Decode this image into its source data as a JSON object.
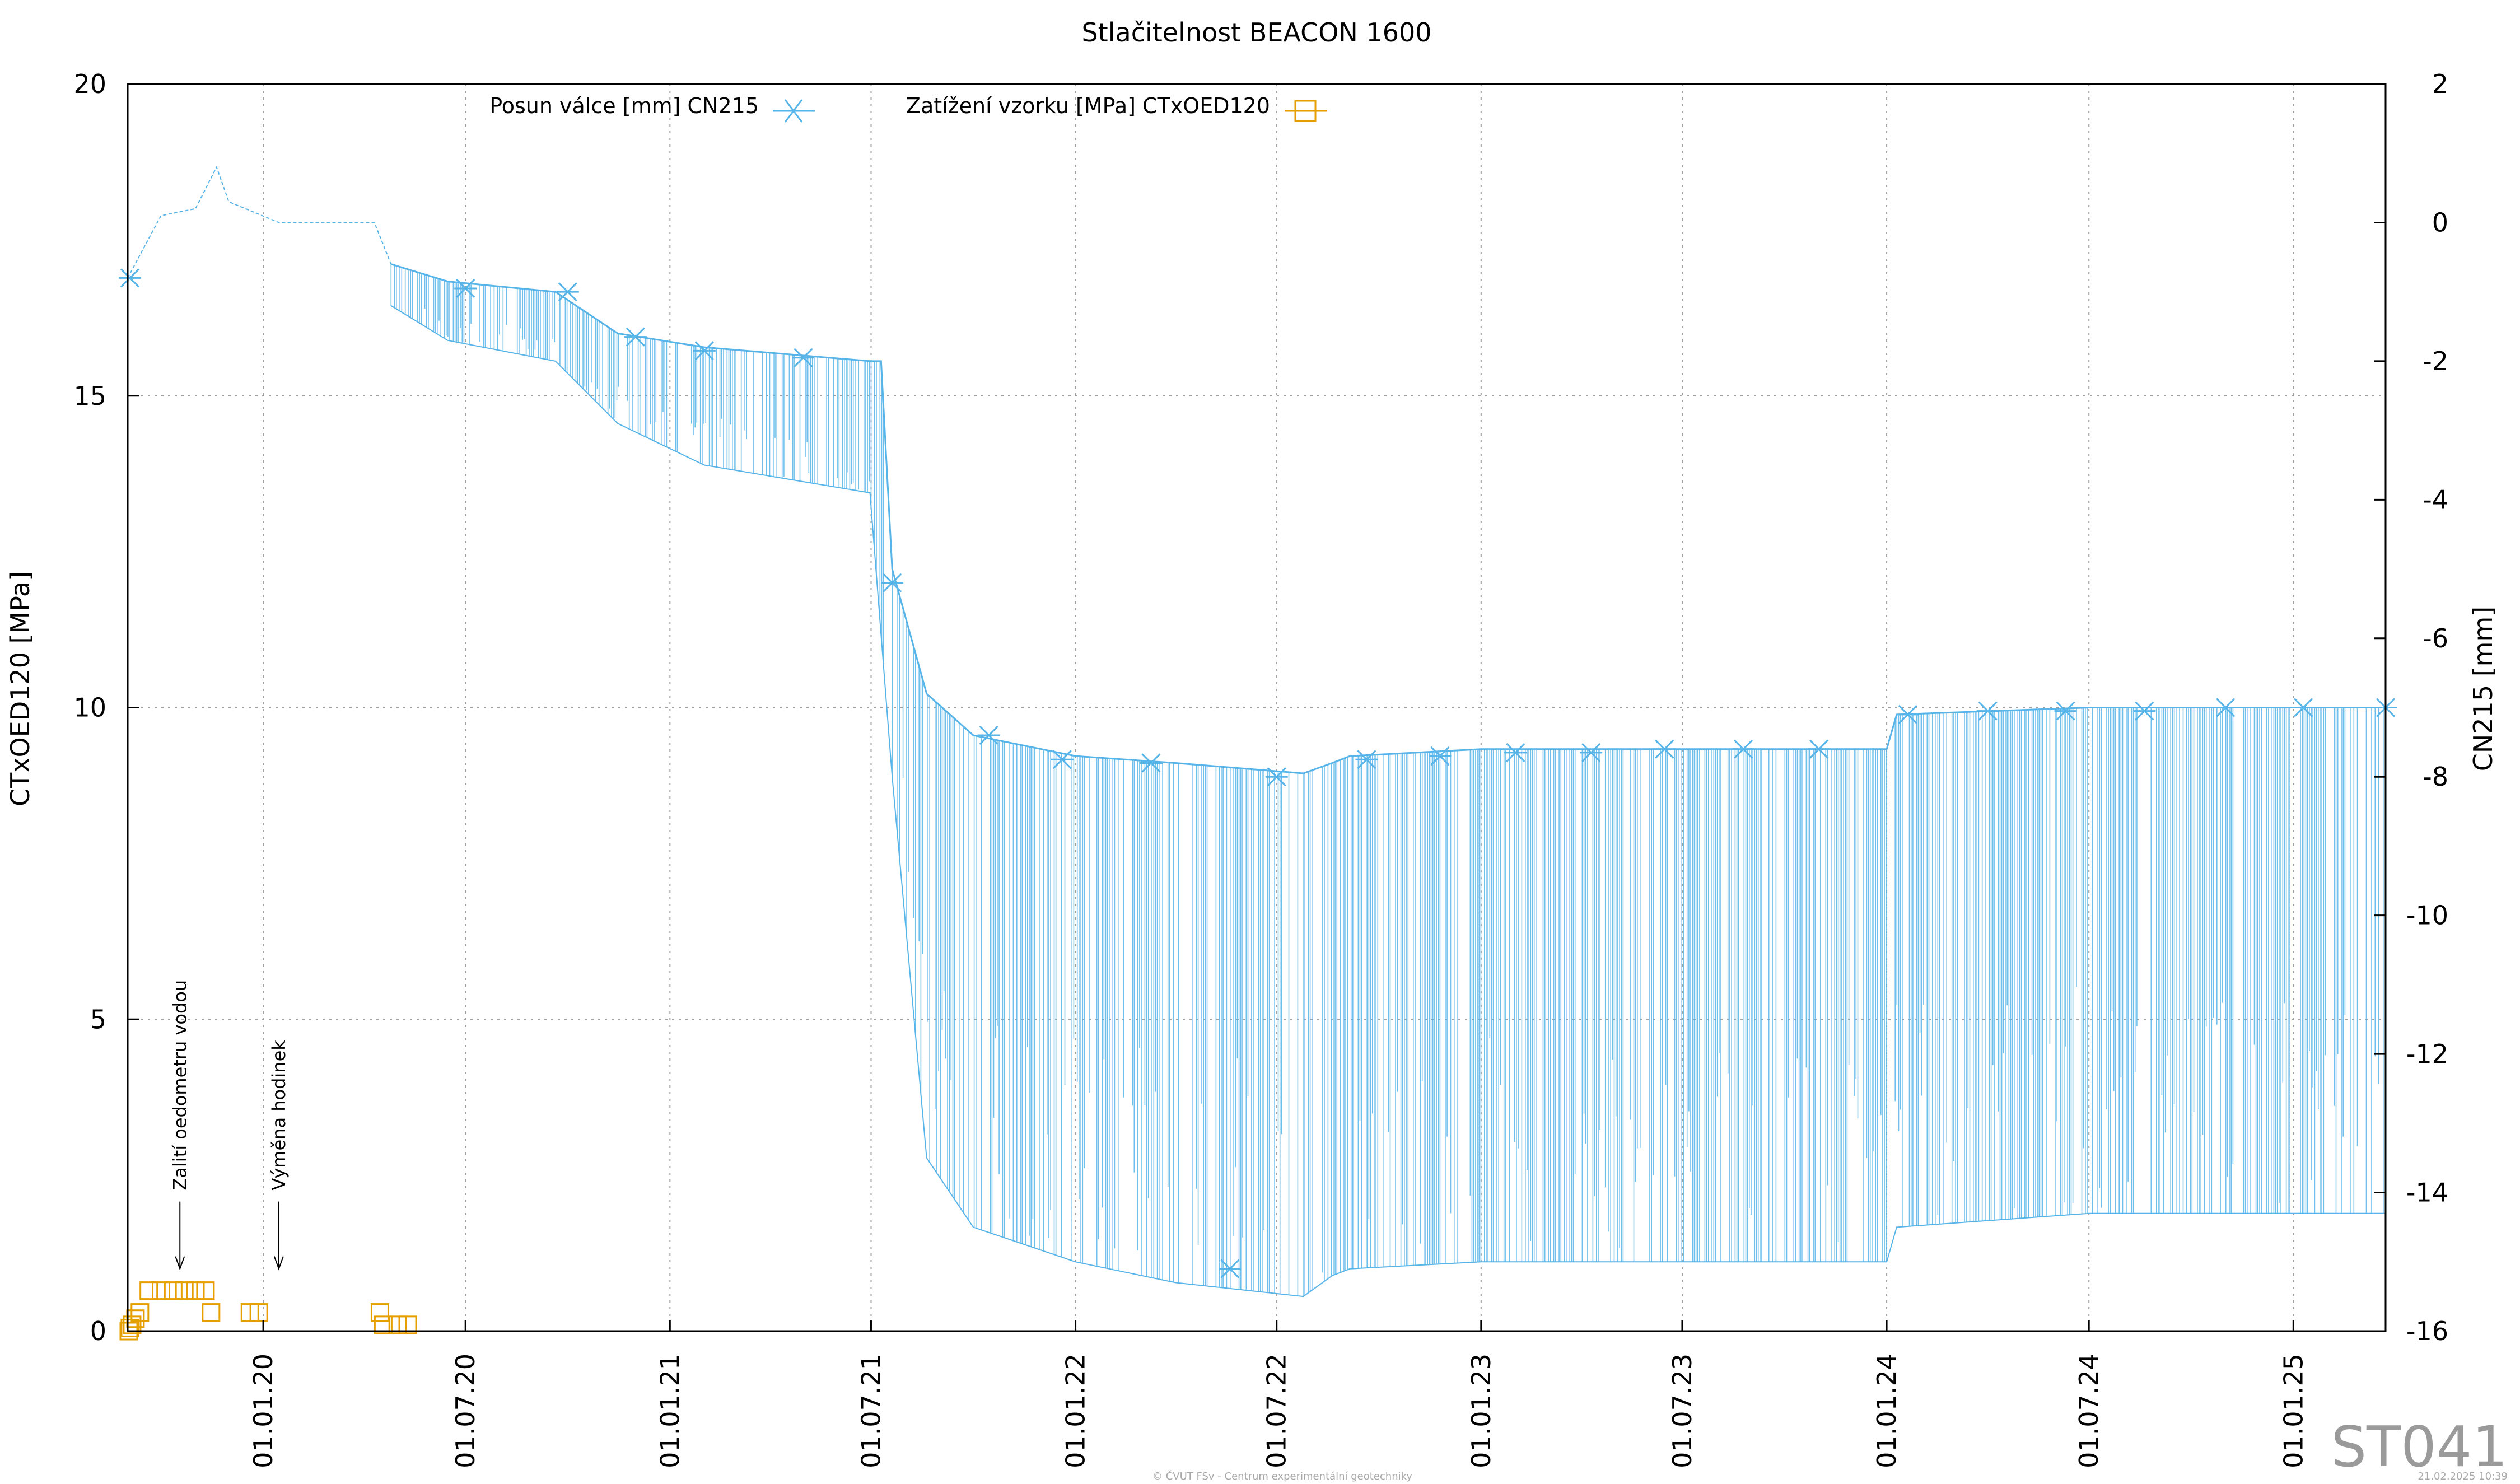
{
  "chart_data": {
    "type": "line",
    "title": "Stlačitelnost BEACON 1600",
    "y_left": {
      "label": "CTxOED120 [MPa]",
      "range": [
        0,
        20
      ],
      "ticks": [
        "0",
        "5",
        "10",
        "15",
        "20"
      ]
    },
    "y_right": {
      "label": "CN215 [mm]",
      "range": [
        -16,
        2
      ],
      "ticks": [
        "-16",
        "-14",
        "-12",
        "-10",
        "-8",
        "-6",
        "-4",
        "-2",
        "0",
        "2"
      ]
    },
    "x_axis": {
      "range": [
        "2019-09-01",
        "2025-03-25"
      ],
      "ticks": [
        {
          "date": "2020-01-01",
          "label": "01.01.20"
        },
        {
          "date": "2020-07-01",
          "label": "01.07.20"
        },
        {
          "date": "2021-01-01",
          "label": "01.01.21"
        },
        {
          "date": "2021-07-01",
          "label": "01.07.21"
        },
        {
          "date": "2022-01-01",
          "label": "01.01.22"
        },
        {
          "date": "2022-07-01",
          "label": "01.07.22"
        },
        {
          "date": "2023-01-01",
          "label": "01.01.23"
        },
        {
          "date": "2023-07-01",
          "label": "01.07.23"
        },
        {
          "date": "2024-01-01",
          "label": "01.01.24"
        },
        {
          "date": "2024-07-01",
          "label": "01.07.24"
        },
        {
          "date": "2025-01-01",
          "label": "01.01.25"
        }
      ]
    },
    "grid": true,
    "legend_position": "top",
    "series": [
      {
        "name": "Posun válce [mm] CN215",
        "axis": "right",
        "color": "#56b4e9",
        "marker": "asterisk",
        "upper_envelope": [
          [
            "2019-09-01",
            -0.8
          ],
          [
            "2019-10-01",
            0.1
          ],
          [
            "2019-11-01",
            0.2
          ],
          [
            "2019-11-20",
            0.8
          ],
          [
            "2019-12-01",
            0.3
          ],
          [
            "2020-01-15",
            0.0
          ],
          [
            "2020-04-10",
            0.0
          ],
          [
            "2020-04-25",
            -0.6
          ],
          [
            "2020-06-15",
            -0.85
          ],
          [
            "2020-09-20",
            -1.0
          ],
          [
            "2020-11-15",
            -1.6
          ],
          [
            "2021-02-01",
            -1.8
          ],
          [
            "2021-06-30",
            -2.0
          ],
          [
            "2021-07-10",
            -2.0
          ],
          [
            "2021-07-20",
            -5.0
          ],
          [
            "2021-08-20",
            -6.8
          ],
          [
            "2021-10-01",
            -7.4
          ],
          [
            "2022-01-01",
            -7.7
          ],
          [
            "2022-04-01",
            -7.8
          ],
          [
            "2022-07-25",
            -7.95
          ],
          [
            "2022-08-20",
            -7.8
          ],
          [
            "2022-09-05",
            -7.7
          ],
          [
            "2023-01-01",
            -7.6
          ],
          [
            "2023-07-01",
            -7.6
          ],
          [
            "2024-01-01",
            -7.6
          ],
          [
            "2024-01-10",
            -7.1
          ],
          [
            "2024-07-01",
            -7.0
          ],
          [
            "2025-03-25",
            -7.0
          ]
        ],
        "lower_envelope": [
          [
            "2020-04-25",
            -1.2
          ],
          [
            "2020-06-15",
            -1.7
          ],
          [
            "2020-09-20",
            -2.0
          ],
          [
            "2020-11-15",
            -2.9
          ],
          [
            "2021-02-01",
            -3.5
          ],
          [
            "2021-06-30",
            -3.9
          ],
          [
            "2021-07-20",
            -8.0
          ],
          [
            "2021-08-20",
            -13.5
          ],
          [
            "2021-10-01",
            -14.5
          ],
          [
            "2022-01-01",
            -15.0
          ],
          [
            "2022-04-01",
            -15.3
          ],
          [
            "2022-07-25",
            -15.5
          ],
          [
            "2022-08-20",
            -15.2
          ],
          [
            "2022-09-05",
            -15.1
          ],
          [
            "2023-01-01",
            -15.0
          ],
          [
            "2023-07-01",
            -15.0
          ],
          [
            "2024-01-01",
            -15.0
          ],
          [
            "2024-01-10",
            -14.5
          ],
          [
            "2024-07-01",
            -14.3
          ],
          [
            "2025-03-25",
            -14.3
          ]
        ],
        "marker_points": [
          [
            "2019-09-03",
            -0.8
          ],
          [
            "2020-07-01",
            -0.95
          ],
          [
            "2020-10-01",
            -1.0
          ],
          [
            "2020-12-01",
            -1.65
          ],
          [
            "2021-02-01",
            -1.85
          ],
          [
            "2021-05-01",
            -1.95
          ],
          [
            "2021-07-20",
            -5.2
          ],
          [
            "2021-10-15",
            -7.4
          ],
          [
            "2021-12-20",
            -7.75
          ],
          [
            "2022-03-10",
            -7.8
          ],
          [
            "2022-05-20",
            -15.1
          ],
          [
            "2022-07-01",
            -8.0
          ],
          [
            "2022-09-20",
            -7.75
          ],
          [
            "2022-11-25",
            -7.7
          ],
          [
            "2023-02-01",
            -7.65
          ],
          [
            "2023-04-10",
            -7.65
          ],
          [
            "2023-06-15",
            -7.6
          ],
          [
            "2023-08-25",
            -7.6
          ],
          [
            "2023-11-01",
            -7.6
          ],
          [
            "2024-01-20",
            -7.1
          ],
          [
            "2024-04-01",
            -7.05
          ],
          [
            "2024-06-10",
            -7.05
          ],
          [
            "2024-08-20",
            -7.05
          ],
          [
            "2024-11-01",
            -7.0
          ],
          [
            "2025-01-10",
            -7.0
          ],
          [
            "2025-03-25",
            -7.0
          ]
        ]
      },
      {
        "name": "Zatížení vzorku [MPa] CTxOED120",
        "axis": "left",
        "color": "#e69f00",
        "marker": "square",
        "points": [
          [
            "2019-09-02",
            0.0
          ],
          [
            "2019-09-03",
            0.05
          ],
          [
            "2019-09-05",
            0.1
          ],
          [
            "2019-09-08",
            0.2
          ],
          [
            "2019-09-12",
            0.3
          ],
          [
            "2019-09-20",
            0.65
          ],
          [
            "2019-10-01",
            0.65
          ],
          [
            "2019-10-12",
            0.65
          ],
          [
            "2019-10-22",
            0.65
          ],
          [
            "2019-11-01",
            0.65
          ],
          [
            "2019-11-10",
            0.65
          ],
          [
            "2019-11-15",
            0.3
          ],
          [
            "2019-12-20",
            0.3
          ],
          [
            "2019-12-28",
            0.3
          ],
          [
            "2020-04-15",
            0.3
          ],
          [
            "2020-04-18",
            0.1
          ],
          [
            "2020-05-01",
            0.1
          ],
          [
            "2020-05-10",
            0.1
          ]
        ]
      }
    ],
    "annotations": [
      {
        "text": "Zalití oedometru vodou",
        "date": "2019-10-18",
        "value": 1.0
      },
      {
        "text": "Výměna hodinek",
        "date": "2020-01-15",
        "value": 1.0
      }
    ],
    "watermark": "ST041",
    "footer_center": "© ČVUT FSv - Centrum experimentální geotechniky",
    "footer_right": "21.02.2025 10:39"
  }
}
